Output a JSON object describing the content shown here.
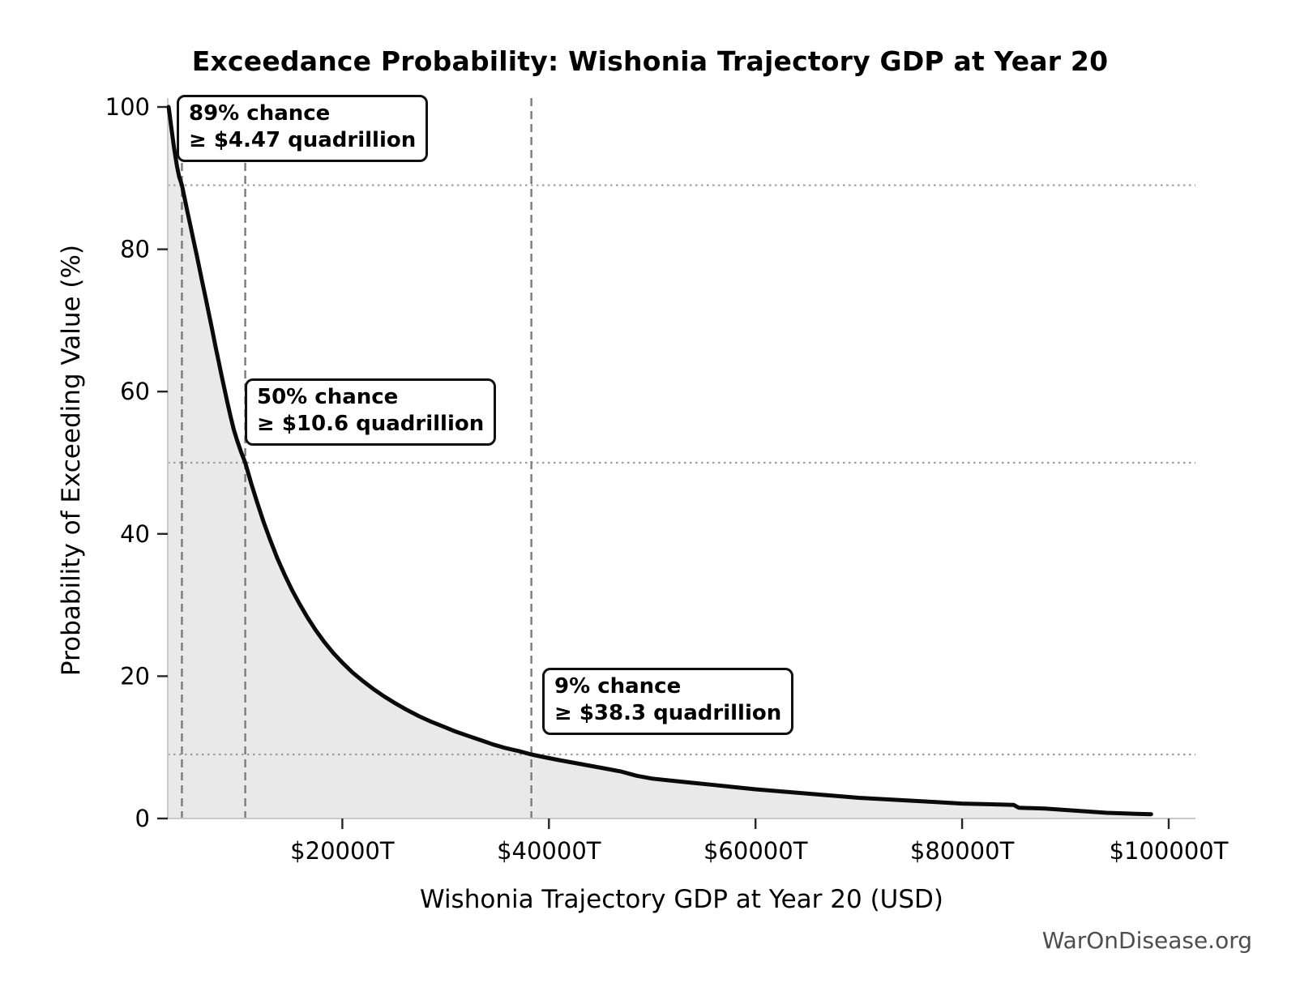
{
  "title": "Exceedance Probability: Wishonia Trajectory GDP at Year 20",
  "watermark": "WarOnDisease.org",
  "chart_data": {
    "type": "line",
    "title": "Exceedance Probability: Wishonia Trajectory GDP at Year 20",
    "xlabel": "Wishonia Trajectory GDP at Year 20 (USD)",
    "ylabel": "Probability of Exceeding Value (%)",
    "x_unit": "trillions of USD",
    "xlim": [
      3100,
      102600
    ],
    "ylim": [
      0,
      100
    ],
    "grid": "off (only dotted/dashed reference lines at annotated points)",
    "legend": "none",
    "colors": {
      "line": "#0a0a0a",
      "fill": "#e9e9e9",
      "dashed_vline": "#7b7b7b",
      "dotted_hline": "#9e9e9e",
      "spine": "#c9c9c9",
      "tick": "#262626",
      "tick_label": "#000000",
      "watermark": "#4d4d4d"
    },
    "xticks": [
      {
        "value": 20000,
        "label": "$20000T"
      },
      {
        "value": 40000,
        "label": "$40000T"
      },
      {
        "value": 60000,
        "label": "$60000T"
      },
      {
        "value": 80000,
        "label": "$80000T"
      },
      {
        "value": 100000,
        "label": "$100000T"
      }
    ],
    "yticks": [
      {
        "value": 0,
        "label": "0"
      },
      {
        "value": 20,
        "label": "20"
      },
      {
        "value": 40,
        "label": "40"
      },
      {
        "value": 60,
        "label": "60"
      },
      {
        "value": 80,
        "label": "80"
      },
      {
        "value": 100,
        "label": "100"
      }
    ],
    "annotations": [
      {
        "prob_pct": 89,
        "value_trillions": 4470,
        "line1": "89% chance",
        "line2": "≥ $4.47 quadrillion"
      },
      {
        "prob_pct": 50,
        "value_trillions": 10600,
        "line1": "50% chance",
        "line2": "≥ $10.6 quadrillion"
      },
      {
        "prob_pct": 9,
        "value_trillions": 38300,
        "line1": "9% chance",
        "line2": "≥ $38.3 quadrillion"
      }
    ],
    "series": [
      {
        "name": "exceedance-curve",
        "points": [
          [
            3180,
            100
          ],
          [
            3250,
            99.3
          ],
          [
            3320,
            98.5
          ],
          [
            3400,
            97.6
          ],
          [
            3500,
            96.5
          ],
          [
            3600,
            95.4
          ],
          [
            3700,
            94.4
          ],
          [
            3850,
            92.9
          ],
          [
            4000,
            91.6
          ],
          [
            4200,
            90.2
          ],
          [
            4470,
            89
          ],
          [
            4700,
            87.4
          ],
          [
            5000,
            85.3
          ],
          [
            5300,
            83.3
          ],
          [
            5600,
            81.2
          ],
          [
            5900,
            79.2
          ],
          [
            6200,
            77.1
          ],
          [
            6500,
            75
          ],
          [
            6800,
            72.9
          ],
          [
            7100,
            70.8
          ],
          [
            7400,
            68.7
          ],
          [
            7700,
            66.5
          ],
          [
            8000,
            64.4
          ],
          [
            8300,
            62.3
          ],
          [
            8600,
            60.3
          ],
          [
            8900,
            58.3
          ],
          [
            9200,
            56.4
          ],
          [
            9500,
            54.6
          ],
          [
            9800,
            53.2
          ],
          [
            10200,
            51.5
          ],
          [
            10600,
            50
          ],
          [
            11200,
            47
          ],
          [
            11800,
            44.2
          ],
          [
            12400,
            41.6
          ],
          [
            13000,
            39.2
          ],
          [
            13700,
            36.6
          ],
          [
            14400,
            34.3
          ],
          [
            15100,
            32.2
          ],
          [
            15800,
            30.3
          ],
          [
            16600,
            28.3
          ],
          [
            17400,
            26.5
          ],
          [
            18200,
            24.9
          ],
          [
            19100,
            23.3
          ],
          [
            20000,
            21.9
          ],
          [
            21000,
            20.5
          ],
          [
            22000,
            19.3
          ],
          [
            23000,
            18.2
          ],
          [
            24000,
            17.2
          ],
          [
            25000,
            16.3
          ],
          [
            26200,
            15.3
          ],
          [
            27400,
            14.4
          ],
          [
            28600,
            13.6
          ],
          [
            29800,
            12.9
          ],
          [
            31000,
            12.2
          ],
          [
            32200,
            11.6
          ],
          [
            33400,
            11
          ],
          [
            34600,
            10.4
          ],
          [
            35800,
            9.9
          ],
          [
            37000,
            9.5
          ],
          [
            38300,
            9
          ],
          [
            39600,
            8.6
          ],
          [
            41000,
            8.2
          ],
          [
            42500,
            7.8
          ],
          [
            44000,
            7.4
          ],
          [
            45500,
            7
          ],
          [
            47000,
            6.6
          ],
          [
            48500,
            6
          ],
          [
            50000,
            5.6
          ],
          [
            52000,
            5.3
          ],
          [
            54000,
            5
          ],
          [
            56000,
            4.7
          ],
          [
            58000,
            4.4
          ],
          [
            60000,
            4.1
          ],
          [
            62500,
            3.8
          ],
          [
            65000,
            3.5
          ],
          [
            67500,
            3.2
          ],
          [
            70000,
            2.9
          ],
          [
            72500,
            2.7
          ],
          [
            75000,
            2.5
          ],
          [
            77500,
            2.3
          ],
          [
            80000,
            2.1
          ],
          [
            82500,
            2
          ],
          [
            85000,
            1.9
          ],
          [
            85500,
            1.5
          ],
          [
            88000,
            1.4
          ],
          [
            90000,
            1.2
          ],
          [
            92000,
            1
          ],
          [
            94000,
            0.8
          ],
          [
            96000,
            0.7
          ],
          [
            98300,
            0.6
          ]
        ]
      }
    ]
  }
}
